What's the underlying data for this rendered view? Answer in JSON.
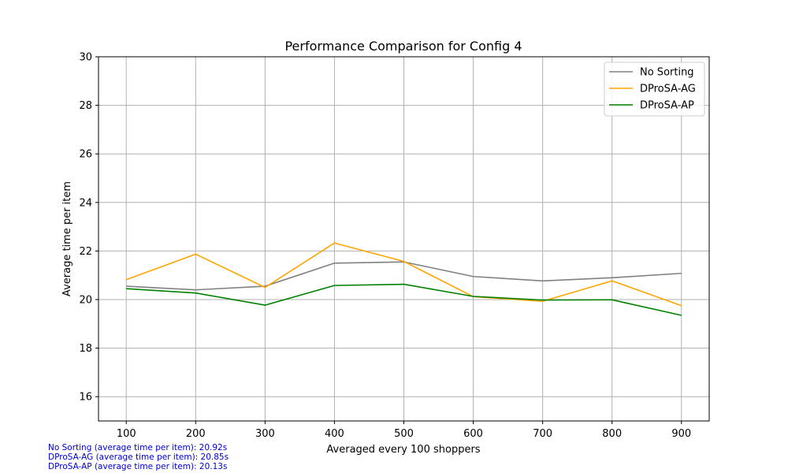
{
  "chart_data": {
    "type": "line",
    "title": "Performance Comparison for Config 4",
    "xlabel": "Averaged every 100 shoppers",
    "ylabel": "Average time per item",
    "x": [
      100,
      200,
      300,
      400,
      500,
      600,
      700,
      800,
      900
    ],
    "xticks": [
      "100",
      "200",
      "300",
      "400",
      "500",
      "600",
      "700",
      "800",
      "900"
    ],
    "xlim": [
      60,
      940
    ],
    "ylim": [
      15,
      30
    ],
    "yticks": [
      "16",
      "18",
      "20",
      "22",
      "24",
      "26",
      "28",
      "30"
    ],
    "grid": true,
    "legend_position": "top-right",
    "series": [
      {
        "name": "No Sorting",
        "color": "#808080",
        "values": [
          20.55,
          20.4,
          20.55,
          21.5,
          21.55,
          20.95,
          20.77,
          20.9,
          21.08
        ]
      },
      {
        "name": "DProSA-AG",
        "color": "#ffa500",
        "values": [
          20.82,
          21.87,
          20.5,
          22.33,
          21.57,
          20.12,
          19.93,
          20.77,
          19.75
        ]
      },
      {
        "name": "DProSA-AP",
        "color": "#008000",
        "values": [
          20.45,
          20.27,
          19.77,
          20.58,
          20.63,
          20.13,
          19.98,
          19.99,
          19.35
        ]
      }
    ]
  },
  "notes": {
    "color": "#0000cc",
    "lines": [
      "No Sorting (average time per item): 20.92s",
      "DProSA-AG (average time per item): 20.85s",
      "DProSA-AP (average time per item): 20.13s"
    ]
  }
}
